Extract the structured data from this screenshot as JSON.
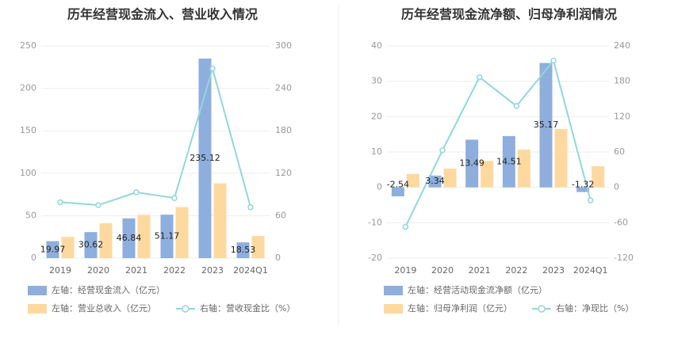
{
  "chart_data": [
    {
      "type": "bar",
      "title": "历年经营现金流入、营业收入情况",
      "categories": [
        "2019",
        "2020",
        "2021",
        "2022",
        "2023",
        "2024Q1"
      ],
      "y_left": {
        "ticks": [
          "0",
          "50",
          "100",
          "150",
          "200",
          "250"
        ],
        "ylim": [
          0,
          250
        ]
      },
      "y_right": {
        "ticks": [
          "0",
          "60",
          "120",
          "180",
          "240",
          "300"
        ],
        "ylim": [
          0,
          300
        ]
      },
      "series": [
        {
          "name": "左轴：经营现金流入（亿元）",
          "type": "bar",
          "axis": "left",
          "color": "#8eaedd",
          "values": [
            19.97,
            30.62,
            46.84,
            51.17,
            235.12,
            18.53
          ],
          "labels": [
            "19.97",
            "30.62",
            "46.84",
            "51.17",
            "235.12",
            "18.53"
          ]
        },
        {
          "name": "左轴：营业总收入（亿元）",
          "type": "bar",
          "axis": "left",
          "color": "#fdd9a0",
          "values": [
            25,
            41,
            51,
            60,
            88,
            26
          ]
        },
        {
          "name": "右轴：营收现金比（%）",
          "type": "line",
          "axis": "right",
          "color": "#8fd8dc",
          "values": [
            79,
            75,
            93,
            85,
            268,
            72
          ]
        }
      ]
    },
    {
      "type": "bar",
      "title": "历年经营现金流净额、归母净利润情况",
      "categories": [
        "2019",
        "2020",
        "2021",
        "2022",
        "2023",
        "2024Q1"
      ],
      "y_left": {
        "ticks": [
          "-20",
          "-10",
          "0",
          "10",
          "20",
          "30",
          "40"
        ],
        "ylim": [
          -20,
          40
        ]
      },
      "y_right": {
        "ticks": [
          "-120",
          "-60",
          "0",
          "60",
          "120",
          "180",
          "240"
        ],
        "ylim": [
          -120,
          240
        ]
      },
      "series": [
        {
          "name": "左轴：经营活动现金流净额（亿元）",
          "type": "bar",
          "axis": "left",
          "color": "#8eaedd",
          "values": [
            -2.54,
            3.34,
            13.49,
            14.51,
            35.17,
            -1.32
          ],
          "labels": [
            "-2.54",
            "3.34",
            "13.49",
            "14.51",
            "35.17",
            "-1.32"
          ]
        },
        {
          "name": "左轴：归母净利润（亿元）",
          "type": "bar",
          "axis": "left",
          "color": "#fdd9a0",
          "values": [
            3.8,
            5.3,
            7.5,
            10.7,
            16.5,
            6
          ]
        },
        {
          "name": "右轴：净现比（%）",
          "type": "line",
          "axis": "right",
          "color": "#8fd8dc",
          "values": [
            -67,
            63,
            187,
            138,
            215,
            -22
          ]
        }
      ]
    }
  ]
}
